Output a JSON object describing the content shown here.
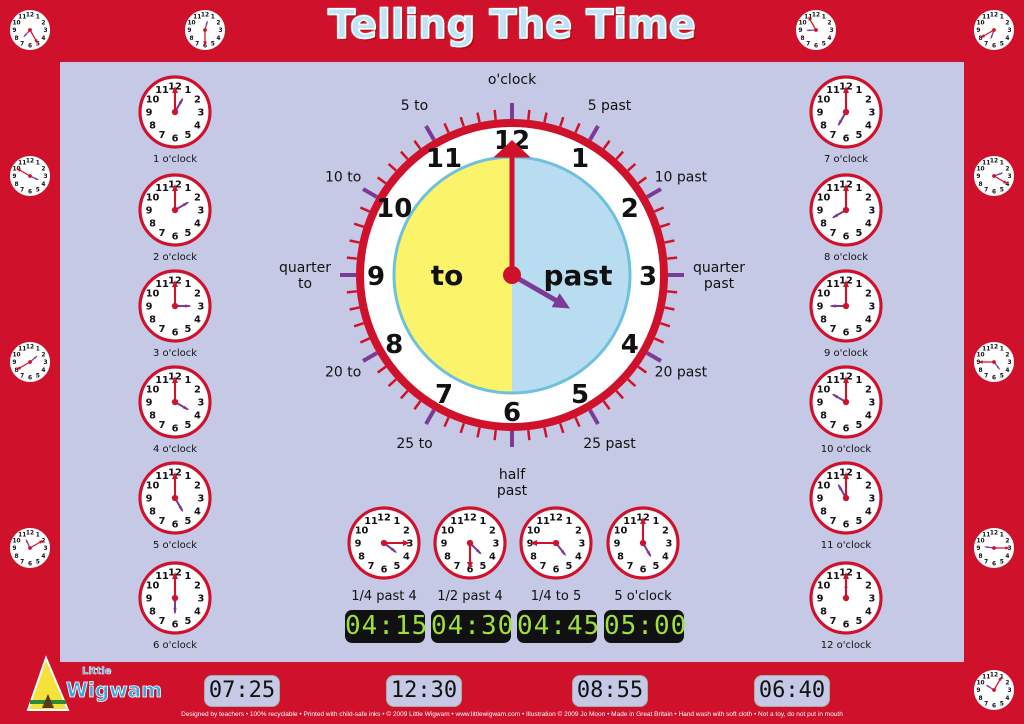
{
  "title": "Telling The Time",
  "numerals": [
    "12",
    "1",
    "2",
    "3",
    "4",
    "5",
    "6",
    "7",
    "8",
    "9",
    "10",
    "11"
  ],
  "colors": {
    "border_red": "#d0112b",
    "panel": "#c6c9e5",
    "to_face": "#fbf36a",
    "past_face": "#b8dcf0",
    "minute_hand": "#d0112b",
    "hour_hand": "#7b3a96",
    "lcd_green": "#9fe03a"
  },
  "main_clock": {
    "to_label": "to",
    "past_label": "past",
    "hour": 4,
    "minute": 0,
    "labels": [
      {
        "text": "o'clock",
        "min": 0
      },
      {
        "text": "5 past",
        "min": 5
      },
      {
        "text": "10 past",
        "min": 10
      },
      {
        "text": "quarter past",
        "min": 15
      },
      {
        "text": "20 past",
        "min": 20
      },
      {
        "text": "25 past",
        "min": 25
      },
      {
        "text": "half past",
        "min": 30
      },
      {
        "text": "25 to",
        "min": 35
      },
      {
        "text": "20 to",
        "min": 40
      },
      {
        "text": "quarter to",
        "min": 45
      },
      {
        "text": "10 to",
        "min": 50
      },
      {
        "text": "5 to",
        "min": 55
      }
    ]
  },
  "left_clocks": [
    {
      "label": "1 o'clock",
      "hour": 1,
      "minute": 0
    },
    {
      "label": "2 o'clock",
      "hour": 2,
      "minute": 0
    },
    {
      "label": "3 o'clock",
      "hour": 3,
      "minute": 0
    },
    {
      "label": "4 o'clock",
      "hour": 4,
      "minute": 0
    },
    {
      "label": "5 o'clock",
      "hour": 5,
      "minute": 0
    },
    {
      "label": "6 o'clock",
      "hour": 6,
      "minute": 0
    }
  ],
  "right_clocks": [
    {
      "label": "7 o'clock",
      "hour": 7,
      "minute": 0
    },
    {
      "label": "8 o'clock",
      "hour": 8,
      "minute": 0
    },
    {
      "label": "9 o'clock",
      "hour": 9,
      "minute": 0
    },
    {
      "label": "10 o'clock",
      "hour": 10,
      "minute": 0
    },
    {
      "label": "11 o'clock",
      "hour": 11,
      "minute": 0
    },
    {
      "label": "12 o'clock",
      "hour": 12,
      "minute": 0
    }
  ],
  "bottom_clocks": [
    {
      "label": "1/4 past 4",
      "hour": 4,
      "minute": 15,
      "digital": "04:15"
    },
    {
      "label": "1/2 past 4",
      "hour": 4,
      "minute": 30,
      "digital": "04:30"
    },
    {
      "label": "1/4 to 5",
      "hour": 4,
      "minute": 45,
      "digital": "04:45"
    },
    {
      "label": "5 o'clock",
      "hour": 5,
      "minute": 0,
      "digital": "05:00"
    }
  ],
  "border_clocks": [
    {
      "hour": 7,
      "minute": 25
    },
    {
      "hour": 12,
      "minute": 30
    },
    {
      "hour": 8,
      "minute": 55
    },
    {
      "hour": 6,
      "minute": 40
    },
    {
      "hour": 3,
      "minute": 50
    },
    {
      "hour": 1,
      "minute": 40
    },
    {
      "hour": 11,
      "minute": 10
    },
    {
      "hour": 2,
      "minute": 20
    },
    {
      "hour": 4,
      "minute": 45
    },
    {
      "hour": 9,
      "minute": 15
    },
    {
      "hour": 10,
      "minute": 5
    },
    {
      "hour": 5,
      "minute": 35
    }
  ],
  "digital_times": [
    "07:25",
    "12:30",
    "08:55",
    "06:40"
  ],
  "logo": {
    "line1": "Little",
    "line2": "Wigwam"
  },
  "footer": "Designed by teachers • 100% recyclable • Printed with child-safe inks • © 2009 Little Wigwam • www.littlewigwam.com • Illustration © 2009 Jo Moon • Made in Great Britain • Hand wash with soft cloth • Not a toy, do not put in mouth"
}
